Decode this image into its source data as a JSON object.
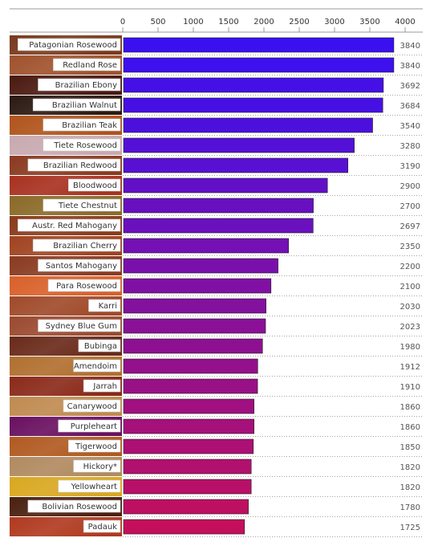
{
  "chart_data": {
    "type": "bar",
    "orientation": "horizontal",
    "xlim": [
      0,
      4000
    ],
    "ticks": [
      "0",
      "500",
      "1000",
      "1500",
      "2000",
      "2500",
      "3000",
      "3500",
      "4000"
    ],
    "tick_values": [
      0,
      500,
      1000,
      1500,
      2000,
      2500,
      3000,
      3500,
      4000
    ],
    "categories": [
      "Patagonian Rosewood",
      "Redland Rose",
      "Brazilian Ebony",
      "Brazilian Walnut",
      "Brazilian Teak",
      "Tiete Rosewood",
      "Brazilian Redwood",
      "Bloodwood",
      "Tiete Chestnut",
      "Austr. Red Mahogany",
      "Brazilian Cherry",
      "Santos Mahogany",
      "Para Rosewood",
      "Karri",
      "Sydney Blue Gum",
      "Bubinga",
      "Amendoim",
      "Jarrah",
      "Canarywood",
      "Purpleheart",
      "Tigerwood",
      "Hickory*",
      "Yellowheart",
      "Bolivian Rosewood",
      "Padauk"
    ],
    "values": [
      3840,
      3840,
      3692,
      3684,
      3540,
      3280,
      3190,
      2900,
      2700,
      2697,
      2350,
      2200,
      2100,
      2030,
      2023,
      1980,
      1912,
      1910,
      1860,
      1860,
      1850,
      1820,
      1820,
      1780,
      1725
    ],
    "value_labels": [
      "3840",
      "3840",
      "3692",
      "3684",
      "3540",
      "3280",
      "3190",
      "2900",
      "2700",
      "2697",
      "2350",
      "2200",
      "2100",
      "2030",
      "2023",
      "1980",
      "1912",
      "1910",
      "1860",
      "1860",
      "1850",
      "1820",
      "1820",
      "1780",
      "1725"
    ],
    "bar_colors": [
      "#3a10f0",
      "#3d10ee",
      "#4410e6",
      "#4610e4",
      "#4c10de",
      "#5410d6",
      "#5810d2",
      "#6210c8",
      "#6810c0",
      "#6a10be",
      "#7410b4",
      "#7a10ac",
      "#8010a4",
      "#84109e",
      "#8a1098",
      "#8e1092",
      "#94108c",
      "#9a1086",
      "#a01080",
      "#a6107a",
      "#ac1074",
      "#b2106e",
      "#b81068",
      "#be1062",
      "#c4105c"
    ],
    "swatch_colors": [
      "#7a3a1e",
      "#a0522d",
      "#4a1a10",
      "#2b1a12",
      "#b0541c",
      "#c9a9b0",
      "#8a3a20",
      "#a83220",
      "#8a6a28",
      "#8a3a1a",
      "#a04420",
      "#8a3a20",
      "#d8602a",
      "#a04a2a",
      "#9a4a30",
      "#6a2a1a",
      "#b07030",
      "#8a2a1a",
      "#c08a50",
      "#6a1060",
      "#b05a20",
      "#b08a60",
      "#d8a820",
      "#4a2010",
      "#b03a20"
    ]
  }
}
